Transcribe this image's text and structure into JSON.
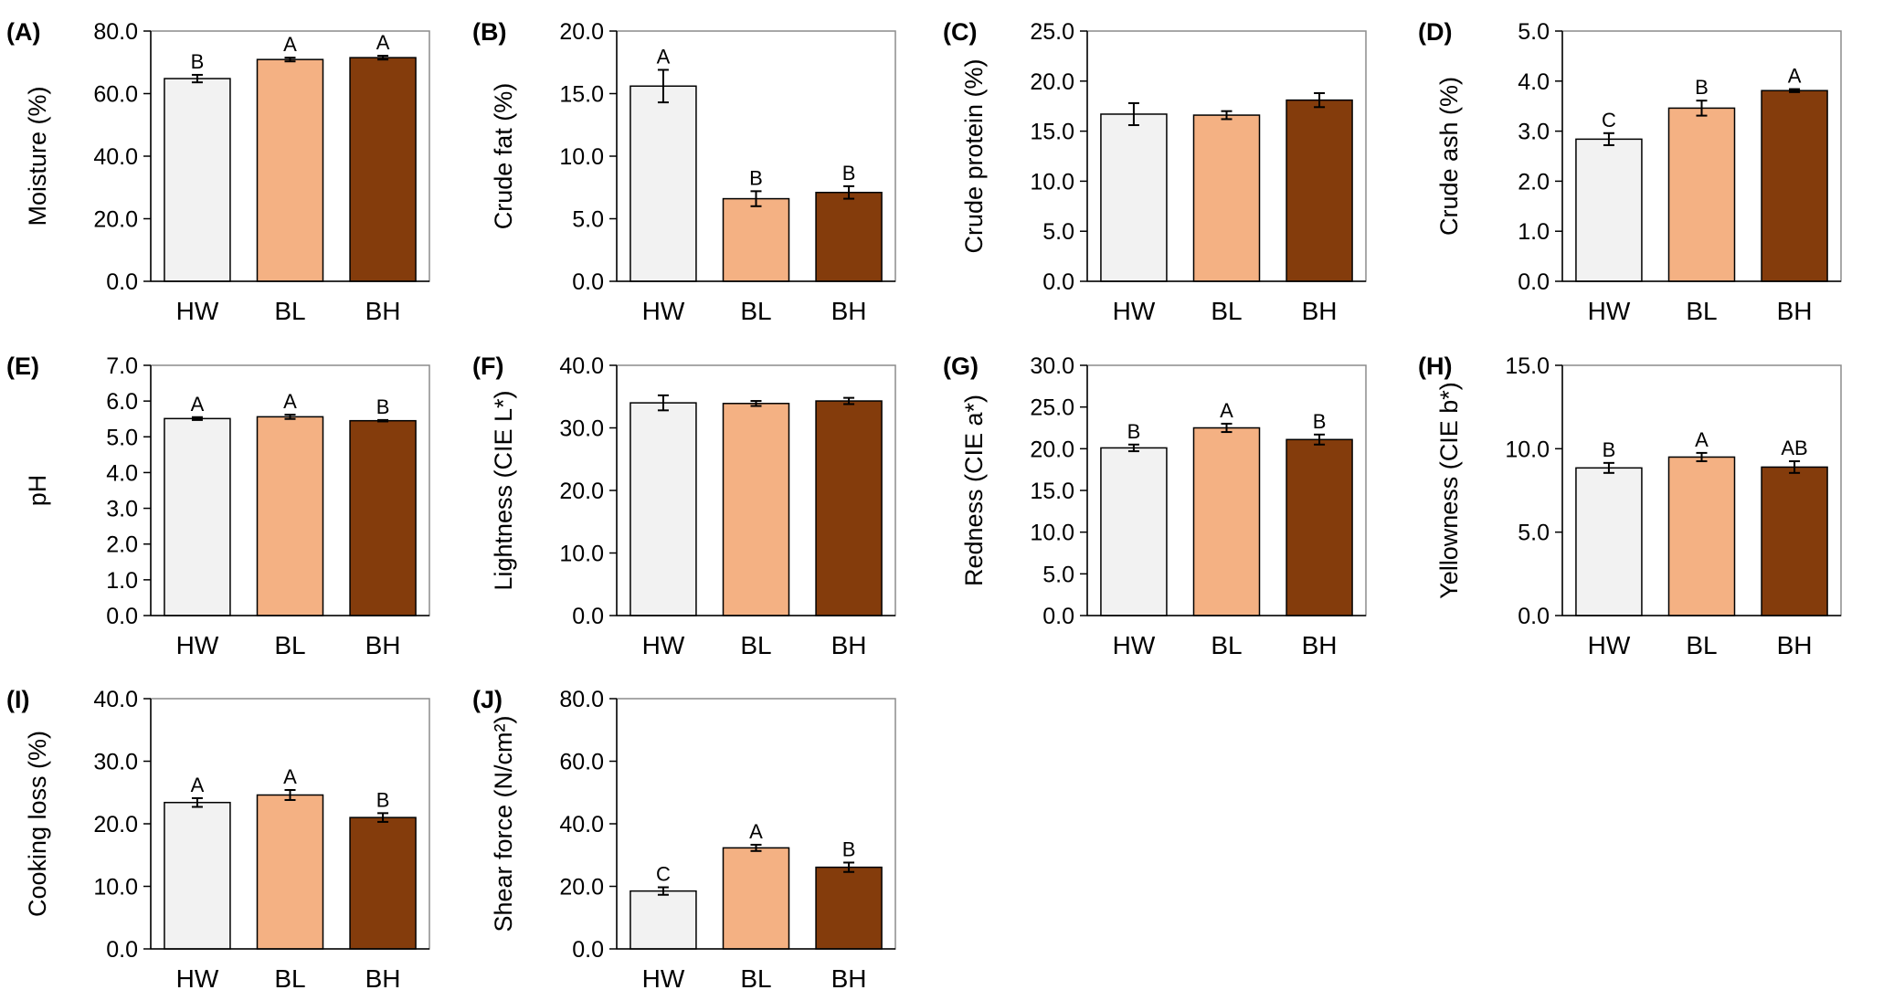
{
  "colors": {
    "HW": "#f2f2f2",
    "BL": "#f4b183",
    "BH": "#843c0c",
    "stroke": "#000000"
  },
  "chart_data": [
    {
      "panel": "(A)",
      "type": "bar",
      "ylabel": "Moisture (%)",
      "categories": [
        "HW",
        "BL",
        "BH"
      ],
      "yticks": [
        "0.0",
        "20.0",
        "40.0",
        "60.0",
        "80.0"
      ],
      "ylim": [
        0,
        80
      ],
      "values": [
        64.8,
        70.9,
        71.5
      ],
      "errors": [
        1.2,
        0.6,
        0.6
      ],
      "letters": [
        "B",
        "A",
        "A"
      ]
    },
    {
      "panel": "(B)",
      "type": "bar",
      "ylabel": "Crude fat (%)",
      "categories": [
        "HW",
        "BL",
        "BH"
      ],
      "yticks": [
        "0.0",
        "5.0",
        "10.0",
        "15.0",
        "20.0"
      ],
      "ylim": [
        0,
        20
      ],
      "values": [
        15.6,
        6.6,
        7.1
      ],
      "errors": [
        1.3,
        0.6,
        0.5
      ],
      "letters": [
        "A",
        "B",
        "B"
      ]
    },
    {
      "panel": "(C)",
      "type": "bar",
      "ylabel": "Crude protein (%)",
      "categories": [
        "HW",
        "BL",
        "BH"
      ],
      "yticks": [
        "0.0",
        "5.0",
        "10.0",
        "15.0",
        "20.0",
        "25.0"
      ],
      "ylim": [
        0,
        25
      ],
      "values": [
        16.7,
        16.6,
        18.1
      ],
      "errors": [
        1.1,
        0.4,
        0.7
      ],
      "letters": [
        "",
        "",
        ""
      ]
    },
    {
      "panel": "(D)",
      "type": "bar",
      "ylabel": "Crude ash (%)",
      "categories": [
        "HW",
        "BL",
        "BH"
      ],
      "yticks": [
        "0.0",
        "1.0",
        "2.0",
        "3.0",
        "4.0",
        "5.0"
      ],
      "ylim": [
        0,
        5
      ],
      "values": [
        2.84,
        3.46,
        3.81
      ],
      "errors": [
        0.12,
        0.15,
        0.03
      ],
      "letters": [
        "C",
        "B",
        "A"
      ]
    },
    {
      "panel": "(E)",
      "type": "bar",
      "ylabel": "pH",
      "categories": [
        "HW",
        "BL",
        "BH"
      ],
      "yticks": [
        "0.0",
        "1.0",
        "2.0",
        "3.0",
        "4.0",
        "5.0",
        "6.0",
        "7.0"
      ],
      "ylim": [
        0,
        7
      ],
      "values": [
        5.51,
        5.56,
        5.45
      ],
      "errors": [
        0.04,
        0.06,
        0.02
      ],
      "letters": [
        "A",
        "A",
        "B"
      ]
    },
    {
      "panel": "(F)",
      "type": "bar",
      "ylabel": "Lightness (CIE L*)",
      "categories": [
        "HW",
        "BL",
        "BH"
      ],
      "yticks": [
        "0.0",
        "10.0",
        "20.0",
        "30.0",
        "40.0"
      ],
      "ylim": [
        0,
        40
      ],
      "values": [
        34.0,
        33.9,
        34.3
      ],
      "errors": [
        1.2,
        0.4,
        0.5
      ],
      "letters": [
        "",
        "",
        ""
      ]
    },
    {
      "panel": "(G)",
      "type": "bar",
      "ylabel": "Redness (CIE a*)",
      "categories": [
        "HW",
        "BL",
        "BH"
      ],
      "yticks": [
        "0.0",
        "5.0",
        "10.0",
        "15.0",
        "20.0",
        "25.0",
        "30.0"
      ],
      "ylim": [
        0,
        30
      ],
      "values": [
        20.1,
        22.5,
        21.1
      ],
      "errors": [
        0.4,
        0.5,
        0.6
      ],
      "letters": [
        "B",
        "A",
        "B"
      ]
    },
    {
      "panel": "(H)",
      "type": "bar",
      "ylabel": "Yellowness (CIE b*)",
      "categories": [
        "HW",
        "BL",
        "BH"
      ],
      "yticks": [
        "0.0",
        "5.0",
        "10.0",
        "15.0"
      ],
      "ylim": [
        0,
        15
      ],
      "values": [
        8.85,
        9.5,
        8.9
      ],
      "errors": [
        0.3,
        0.25,
        0.35
      ],
      "letters": [
        "B",
        "A",
        "AB"
      ]
    },
    {
      "panel": "(I)",
      "type": "bar",
      "ylabel": "Cooking loss (%)",
      "categories": [
        "HW",
        "BL",
        "BH"
      ],
      "yticks": [
        "0.0",
        "10.0",
        "20.0",
        "30.0",
        "40.0"
      ],
      "ylim": [
        0,
        40
      ],
      "values": [
        23.4,
        24.6,
        21.0
      ],
      "errors": [
        0.7,
        0.8,
        0.7
      ],
      "letters": [
        "A",
        "A",
        "B"
      ]
    },
    {
      "panel": "(J)",
      "type": "bar",
      "ylabel": "Shear force (N/cm²)",
      "categories": [
        "HW",
        "BL",
        "BH"
      ],
      "yticks": [
        "0.0",
        "20.0",
        "40.0",
        "60.0",
        "80.0"
      ],
      "ylim": [
        0,
        80
      ],
      "values": [
        18.5,
        32.3,
        26.1
      ],
      "errors": [
        1.2,
        1.0,
        1.5
      ],
      "letters": [
        "C",
        "A",
        "B"
      ]
    }
  ]
}
